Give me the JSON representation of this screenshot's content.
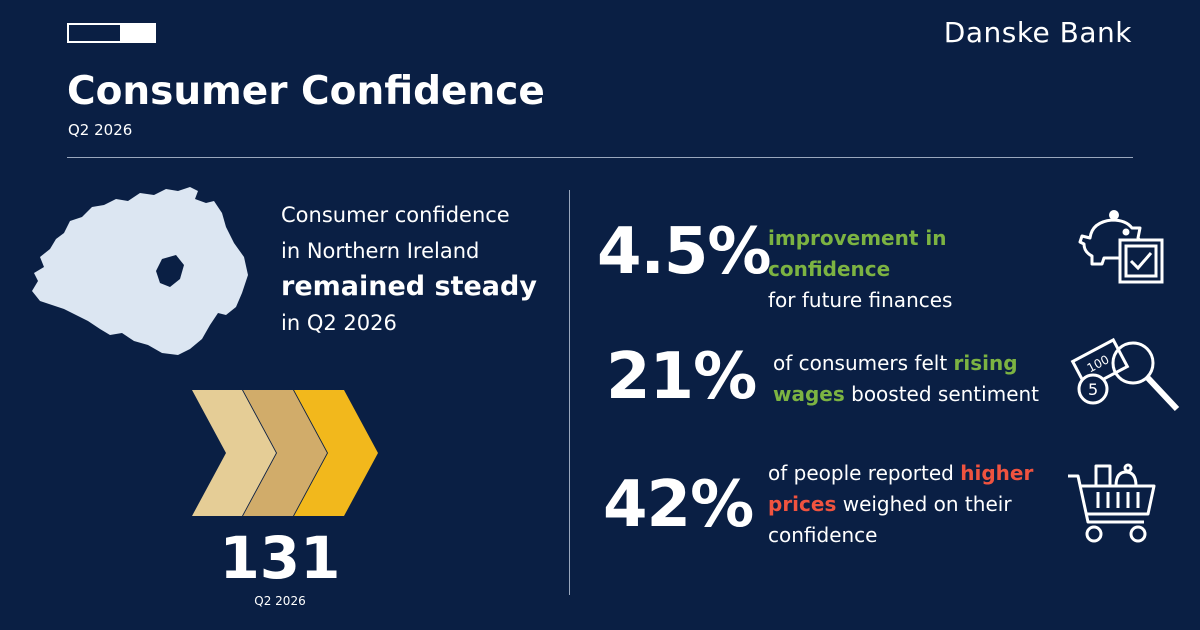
{
  "header": {
    "progress_fraction": 0.4,
    "brand": "Danske Bank",
    "title": "Consumer Confidence",
    "subtitle": "Q2 2026"
  },
  "intro": {
    "line1": "Consumer confidence",
    "line2": "in Northern Ireland",
    "highlight": "remained steady",
    "line4": "in Q2 2026"
  },
  "index": {
    "value": "131",
    "period": "Q2 2026"
  },
  "stats": [
    {
      "value": "4.5%",
      "highlight": "improvement in confidence",
      "rest": "for future finances",
      "icon": "piggy-bank-checkbox-icon"
    },
    {
      "value": "21%",
      "pre": "of consumers felt ",
      "highlight": "rising wages",
      "rest": " boosted sentiment",
      "icon": "money-magnifier-icon"
    },
    {
      "value": "42%",
      "pre": "of people reported ",
      "highlight": "higher prices",
      "rest": " weighed on their confidence",
      "icon": "shopping-cart-icon"
    }
  ],
  "colors": {
    "background": "#0a1f44",
    "positive": "#7cb342",
    "negative": "#f0533f",
    "chevron_light": "#e5cd96",
    "chevron_mid": "#d1ac6a",
    "chevron_gold": "#f2b81c",
    "map_fill": "#dce6f2"
  }
}
